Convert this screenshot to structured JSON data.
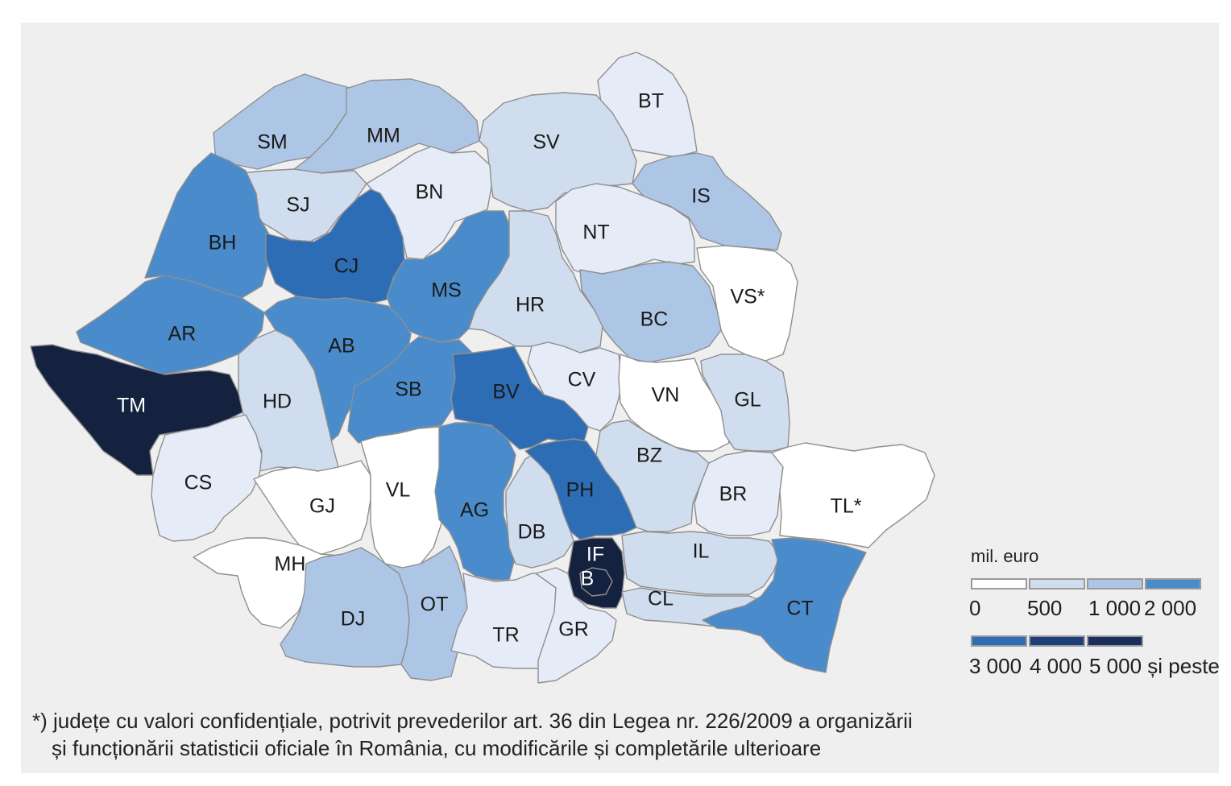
{
  "colors": {
    "class_0": "#ffffff",
    "class_500": "#e6ecf7",
    "class_1000": "#d0ddef",
    "class_2000": "#aec6e6",
    "class_3000": "#4a8bcb",
    "class_4000": "#2c6db6",
    "class_5000": "#1a2e5c",
    "class_top": "#14213f",
    "border": "#8f8f8f",
    "panel": "#efefef"
  },
  "counties": [
    {
      "code": "SM",
      "class": "class_2000"
    },
    {
      "code": "MM",
      "class": "class_2000"
    },
    {
      "code": "BT",
      "class": "class_500"
    },
    {
      "code": "SV",
      "class": "class_1000"
    },
    {
      "code": "SJ",
      "class": "class_1000"
    },
    {
      "code": "BN",
      "class": "class_500"
    },
    {
      "code": "IS",
      "class": "class_2000"
    },
    {
      "code": "BH",
      "class": "class_3000"
    },
    {
      "code": "CJ",
      "class": "class_4000"
    },
    {
      "code": "NT",
      "class": "class_500"
    },
    {
      "code": "MS",
      "class": "class_3000"
    },
    {
      "code": "HR",
      "class": "class_1000"
    },
    {
      "code": "VS*",
      "class": "class_0"
    },
    {
      "code": "BC",
      "class": "class_2000"
    },
    {
      "code": "AR",
      "class": "class_3000"
    },
    {
      "code": "AB",
      "class": "class_3000"
    },
    {
      "code": "TM",
      "class": "class_top"
    },
    {
      "code": "HD",
      "class": "class_1000"
    },
    {
      "code": "SB",
      "class": "class_3000"
    },
    {
      "code": "BV",
      "class": "class_4000"
    },
    {
      "code": "CV",
      "class": "class_500"
    },
    {
      "code": "VN",
      "class": "class_0"
    },
    {
      "code": "GL",
      "class": "class_1000"
    },
    {
      "code": "CS",
      "class": "class_500"
    },
    {
      "code": "GJ",
      "class": "class_0"
    },
    {
      "code": "VL",
      "class": "class_0"
    },
    {
      "code": "AG",
      "class": "class_3000"
    },
    {
      "code": "DB",
      "class": "class_1000"
    },
    {
      "code": "PH",
      "class": "class_4000"
    },
    {
      "code": "BZ",
      "class": "class_1000"
    },
    {
      "code": "BR",
      "class": "class_500"
    },
    {
      "code": "TL*",
      "class": "class_0"
    },
    {
      "code": "MH",
      "class": "class_0"
    },
    {
      "code": "DJ",
      "class": "class_2000"
    },
    {
      "code": "OT",
      "class": "class_2000"
    },
    {
      "code": "TR",
      "class": "class_500"
    },
    {
      "code": "GR",
      "class": "class_500"
    },
    {
      "code": "IF",
      "class": "class_top"
    },
    {
      "code": "B",
      "class": "class_top"
    },
    {
      "code": "IL",
      "class": "class_1000"
    },
    {
      "code": "CL",
      "class": "class_1000"
    },
    {
      "code": "CT",
      "class": "class_3000"
    }
  ],
  "legend": {
    "unit": "mil. euro",
    "row1_colors": [
      "#ffffff",
      "#d0ddef",
      "#aec6e6",
      "#4a8bcb"
    ],
    "row2_colors": [
      "#2c6db6",
      "#1c3f7a",
      "#1a2e5c"
    ],
    "row1_labels": [
      "0",
      "500",
      "1 000",
      "2 000"
    ],
    "row2_labels": [
      "3 000",
      "4 000",
      "5 000 și peste"
    ]
  },
  "footnote": {
    "line1": "*) județe cu valori confidențiale, potrivit prevederilor art. 36 din Legea nr. 226/2009 a organizării",
    "line2": "și funcționării statisticii oficiale în România, cu modificările și completările ulterioare"
  }
}
